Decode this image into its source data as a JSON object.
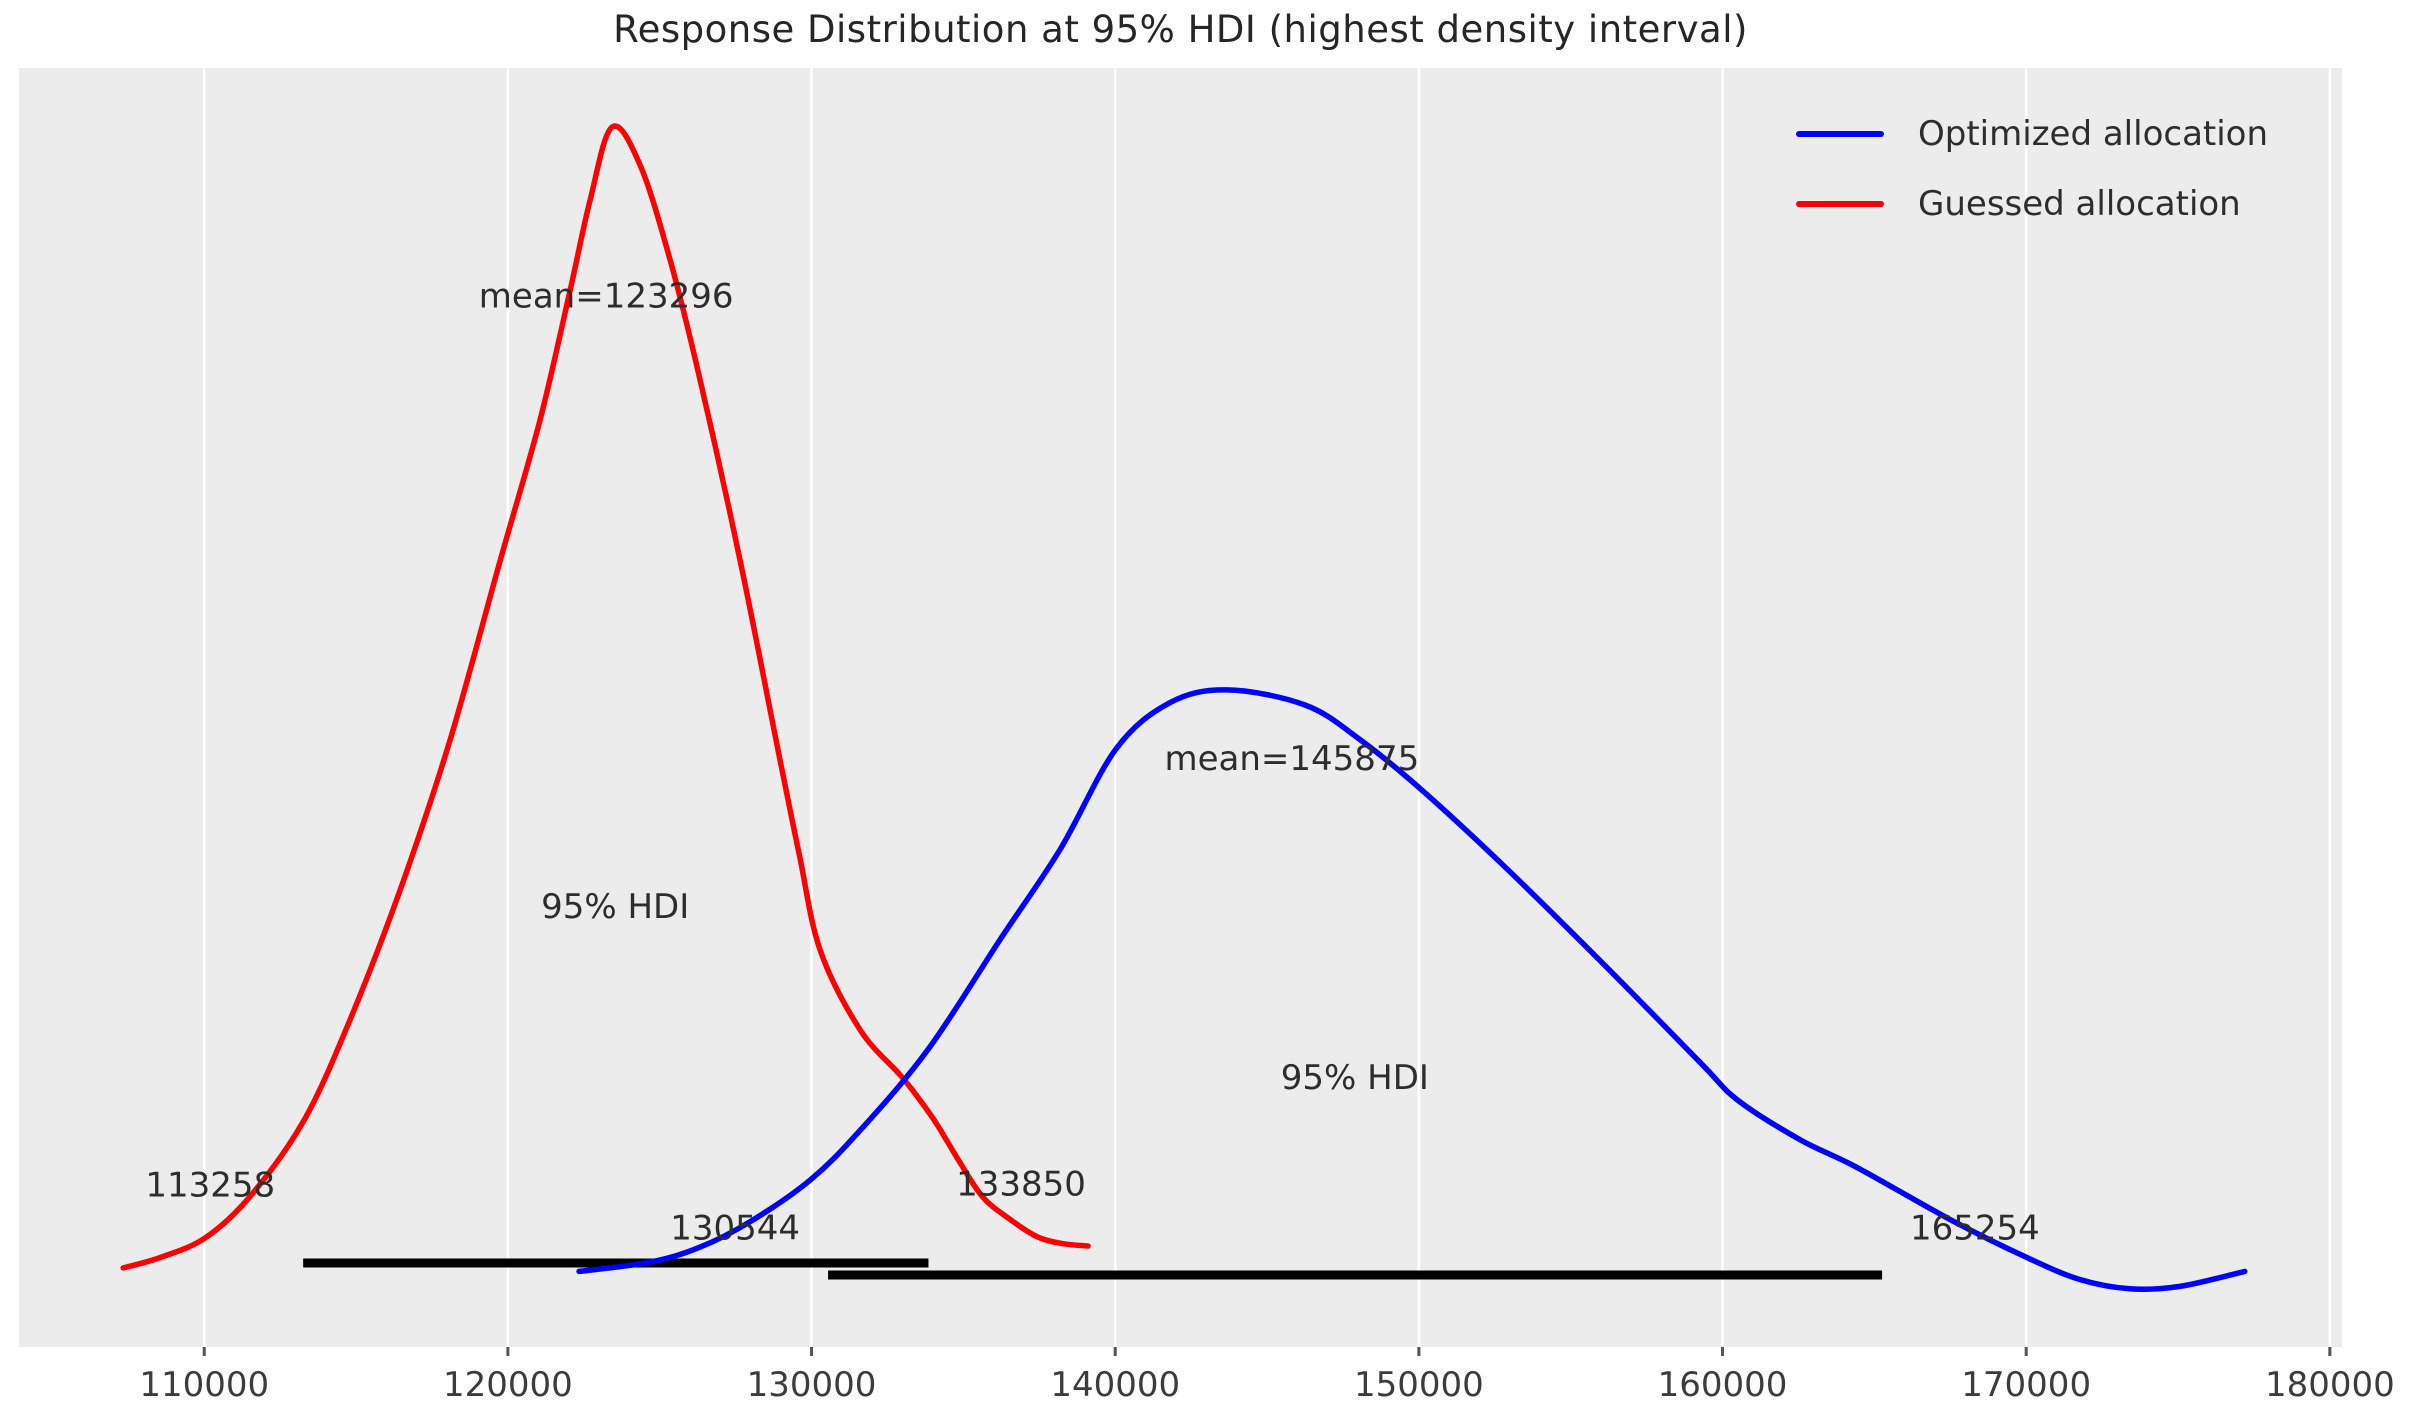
{
  "title": "Response Distribution at 95% HDI (highest density interval)",
  "legend": {
    "items": [
      {
        "label": "Optimized allocation",
        "color": "#0000ff"
      },
      {
        "label": "Guessed allocation",
        "color": "#ff0000"
      }
    ]
  },
  "colors": {
    "figure_bg": "#ffffff",
    "plot_bg": "#ececec",
    "gridline": "#ffffff",
    "tick_mark": "#555555",
    "tick_label": "#3c3c3c",
    "annotation": "#2d2d2d",
    "hdi_bar": "#000000"
  },
  "chart_data": {
    "type": "line",
    "title": "Response Distribution at 95% HDI (highest density interval)",
    "xlabel": "",
    "ylabel": "",
    "grid": "vertical-only",
    "legend_position": "upper right",
    "x_axis": {
      "range": [
        103900,
        180400
      ],
      "ticks": [
        {
          "value": 110000,
          "label": "110000"
        },
        {
          "value": 120000,
          "label": "120000"
        },
        {
          "value": 130000,
          "label": "130000"
        },
        {
          "value": 140000,
          "label": "140000"
        },
        {
          "value": 150000,
          "label": "150000"
        },
        {
          "value": 160000,
          "label": "160000"
        },
        {
          "value": 170000,
          "label": "170000"
        },
        {
          "value": 180000,
          "label": "180000"
        }
      ]
    },
    "y_axis": {
      "visible": false,
      "range": [
        -0.0554,
        1.051
      ],
      "unit": "relative density (red peak = 1.0)"
    },
    "series": [
      {
        "name": "Guessed allocation",
        "color": "#ff0000",
        "mean": 123296,
        "hdi_low": 113258,
        "hdi_high": 133850,
        "points": [
          [
            107333,
            0.013
          ],
          [
            108551,
            0.022
          ],
          [
            110033,
            0.039
          ],
          [
            111514,
            0.075
          ],
          [
            113292,
            0.141
          ],
          [
            114807,
            0.228
          ],
          [
            116453,
            0.34
          ],
          [
            118099,
            0.47
          ],
          [
            119746,
            0.625
          ],
          [
            121063,
            0.747
          ],
          [
            122051,
            0.859
          ],
          [
            122709,
            0.937
          ],
          [
            123433,
            1.0
          ],
          [
            124355,
            0.967
          ],
          [
            125343,
            0.885
          ],
          [
            126331,
            0.781
          ],
          [
            127648,
            0.625
          ],
          [
            128965,
            0.452
          ],
          [
            129600,
            0.37
          ],
          [
            130282,
            0.288
          ],
          [
            131599,
            0.219
          ],
          [
            132916,
            0.18
          ],
          [
            133574,
            0.158
          ],
          [
            134134,
            0.137
          ],
          [
            134891,
            0.104
          ],
          [
            135648,
            0.074
          ],
          [
            136537,
            0.055
          ],
          [
            137426,
            0.04
          ],
          [
            138282,
            0.034
          ],
          [
            139105,
            0.032
          ]
        ]
      },
      {
        "name": "Optimized allocation",
        "color": "#0000ff",
        "mean": 145875,
        "hdi_low": 130544,
        "hdi_high": 165254,
        "points": [
          [
            122346,
            0.01
          ],
          [
            124684,
            0.018
          ],
          [
            126331,
            0.031
          ],
          [
            127977,
            0.053
          ],
          [
            129953,
            0.089
          ],
          [
            131599,
            0.132
          ],
          [
            133838,
            0.202
          ],
          [
            136209,
            0.297
          ],
          [
            138184,
            0.375
          ],
          [
            140028,
            0.462
          ],
          [
            141806,
            0.502
          ],
          [
            143683,
            0.513
          ],
          [
            146251,
            0.5
          ],
          [
            148062,
            0.47
          ],
          [
            150070,
            0.427
          ],
          [
            152671,
            0.364
          ],
          [
            155963,
            0.279
          ],
          [
            159256,
            0.191
          ],
          [
            160507,
            0.158
          ],
          [
            162548,
            0.124
          ],
          [
            164425,
            0.1
          ],
          [
            167487,
            0.055
          ],
          [
            170022,
            0.022
          ],
          [
            171767,
            0.003
          ],
          [
            173413,
            -0.005
          ],
          [
            175059,
            -0.003
          ],
          [
            177199,
            0.01
          ]
        ]
      }
    ],
    "hdi_bars": [
      {
        "series": "Guessed allocation",
        "from": 113258,
        "to": 133850,
        "y": 0.0173
      },
      {
        "series": "Optimized allocation",
        "from": 130544,
        "to": 165254,
        "y": 0.0069
      }
    ],
    "annotations": [
      {
        "text": "mean=123296",
        "x": 123236,
        "y": 0.852
      },
      {
        "text": "mean=145875",
        "x": 145817,
        "y": 0.452
      },
      {
        "text": "95% HDI",
        "x": 123532,
        "y": 0.324
      },
      {
        "text": "95% HDI",
        "x": 147891,
        "y": 0.176
      },
      {
        "text": "113258",
        "x": 110198,
        "y": 0.083
      },
      {
        "text": "133850",
        "x": 136899,
        "y": 0.084
      },
      {
        "text": "130544",
        "x": 127483,
        "y": 0.046
      },
      {
        "text": "165254",
        "x": 168310,
        "y": 0.046
      }
    ]
  }
}
